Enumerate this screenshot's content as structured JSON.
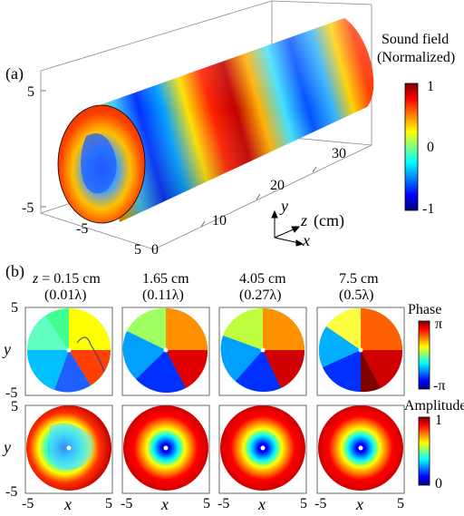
{
  "panel_a": {
    "label": "(a)",
    "colorbar_title_line1": "Sound field",
    "colorbar_title_line2": "(Normalized)",
    "colorbar_ticks": [
      "1",
      "0",
      "-1"
    ],
    "y_ticks": [
      "5",
      "-5"
    ],
    "x_ticks": [
      "-5",
      "5"
    ],
    "z_ticks": [
      "0",
      "10",
      "20",
      "30"
    ],
    "axis_y": "y",
    "axis_z": "z",
    "axis_z_unit": "(cm)",
    "axis_x": "x"
  },
  "panel_b": {
    "label": "(b)",
    "columns": [
      {
        "z_prefix": "z",
        "z_value": "= 0.15 cm",
        "lambda": "(0.01λ)"
      },
      {
        "z_prefix": "",
        "z_value": "1.65 cm",
        "lambda": "(0.11λ)"
      },
      {
        "z_prefix": "",
        "z_value": "4.05 cm",
        "lambda": "(0.27λ)"
      },
      {
        "z_prefix": "",
        "z_value": "7.5 cm",
        "lambda": "(0.5λ)"
      }
    ],
    "phase_title": "Phase",
    "phase_ticks": [
      "π",
      "-π"
    ],
    "amplitude_title": "Amplitude",
    "amplitude_ticks": [
      "1",
      "0"
    ],
    "axis_y": "y",
    "axis_x": "x",
    "y_ticks": [
      "5",
      "-5"
    ],
    "x_ticks": [
      "-5",
      "5"
    ]
  },
  "colors": {
    "jet_dark_red": "#7f0000",
    "jet_red": "#ff0000",
    "jet_yellow": "#ffff00",
    "jet_cyan": "#00ffff",
    "jet_blue": "#0000ff",
    "jet_dark_blue": "#00007f"
  }
}
